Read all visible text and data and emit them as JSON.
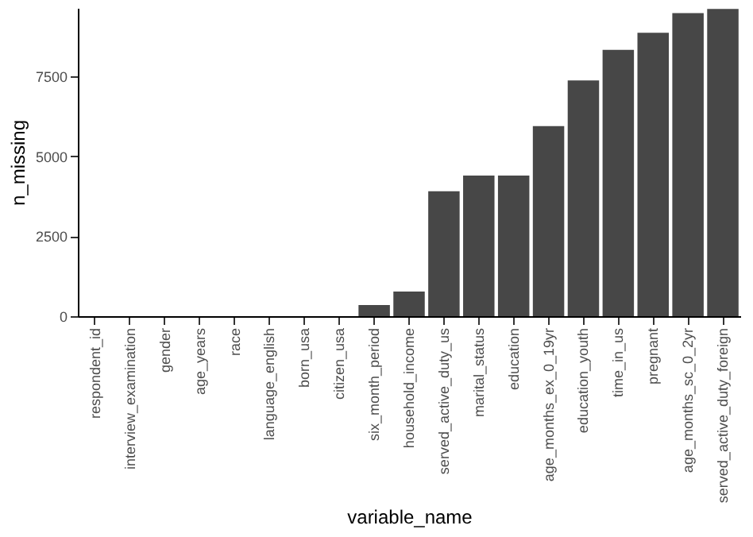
{
  "chart_data": {
    "type": "bar",
    "xlabel": "variable_name",
    "ylabel": "n_missing",
    "categories": [
      "respondent_id",
      "interview_examination",
      "gender",
      "age_years",
      "race",
      "language_english",
      "born_usa",
      "citizen_usa",
      "six_month_period",
      "household_income",
      "served_active_duty_us",
      "marital_status",
      "education",
      "age_months_ex_0_19yr",
      "education_youth",
      "time_in_us",
      "pregnant",
      "age_months_sc_0_2yr",
      "served_active_duty_foreign"
    ],
    "values": [
      0,
      0,
      0,
      0,
      0,
      0,
      0,
      0,
      350,
      770,
      3910,
      4400,
      4400,
      5950,
      7380,
      8340,
      8870,
      9490,
      9620
    ],
    "color": "#474747",
    "ylim": [
      0,
      9650
    ],
    "yticks": [
      0,
      2500,
      5000,
      7500
    ],
    "grid": false
  }
}
